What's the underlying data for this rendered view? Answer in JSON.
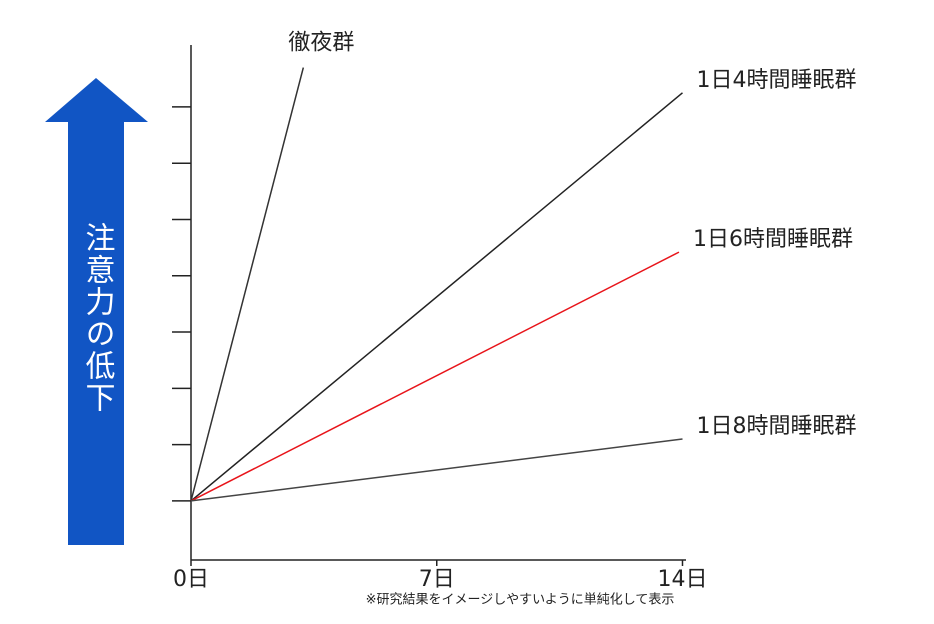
{
  "chart_data": {
    "type": "line",
    "ylabel": "注意力の低下",
    "note": "※研究結果をイメージしやすいように単純化して表示",
    "xlim": [
      0,
      14.1
    ],
    "ylim": [
      -1.05,
      8.1
    ],
    "xticks": [
      {
        "value": 0,
        "label": "0日"
      },
      {
        "value": 7,
        "label": "7日"
      },
      {
        "value": 14,
        "label": "14日"
      }
    ],
    "yticks": [
      0,
      1,
      2,
      3,
      4,
      5,
      6,
      7
    ],
    "series": [
      {
        "name": "徹夜群",
        "color": "#333333",
        "x": [
          0,
          3.2
        ],
        "values": [
          0,
          7.7
        ]
      },
      {
        "name": "1日4時間睡眠群",
        "color": "#222222",
        "x": [
          0,
          14
        ],
        "values": [
          0,
          7.25
        ]
      },
      {
        "name": "1日6時間睡眠群",
        "color": "#e8141a",
        "x": [
          0,
          13.9
        ],
        "values": [
          0,
          4.42
        ]
      },
      {
        "name": "1日8時間睡眠群",
        "color": "#444444",
        "x": [
          0,
          14
        ],
        "values": [
          0,
          1.1
        ]
      }
    ]
  }
}
